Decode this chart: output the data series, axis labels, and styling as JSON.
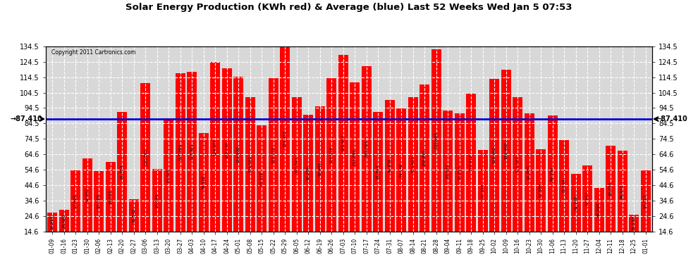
{
  "title": "Solar Energy Production (KWh red) & Average (blue) Last 52 Weeks Wed Jan 5 07:53",
  "copyright": "Copyright 2011 Cartronics.com",
  "average": 87.41,
  "average_label": "87.410",
  "bar_color": "#ff0000",
  "avg_line_color": "#0000dd",
  "background_color": "#ffffff",
  "plot_bg_color": "#ffffff",
  "grid_color": "#bbbbbb",
  "ylim": [
    14.6,
    134.5
  ],
  "yticks": [
    14.6,
    24.6,
    34.6,
    44.6,
    54.6,
    64.6,
    74.5,
    84.5,
    94.5,
    104.5,
    114.5,
    124.5,
    134.5
  ],
  "categories": [
    "01-09",
    "01-16",
    "01-23",
    "01-30",
    "02-06",
    "02-13",
    "02-20",
    "02-27",
    "03-06",
    "03-13",
    "03-20",
    "03-27",
    "04-03",
    "04-10",
    "04-17",
    "04-24",
    "05-01",
    "05-08",
    "05-15",
    "05-22",
    "05-29",
    "06-05",
    "06-12",
    "06-19",
    "06-26",
    "07-03",
    "07-10",
    "07-17",
    "07-24",
    "07-31",
    "08-07",
    "08-14",
    "08-21",
    "08-28",
    "09-04",
    "09-11",
    "09-18",
    "09-25",
    "10-02",
    "10-09",
    "10-16",
    "10-23",
    "10-30",
    "11-06",
    "11-13",
    "11-20",
    "11-27",
    "12-04",
    "12-11",
    "12-18",
    "12-25",
    "01-01"
  ],
  "values": [
    26.813,
    28.602,
    53.926,
    62.08,
    53.703,
    59.522,
    91.764,
    35.542,
    110.706,
    55.049,
    87.91,
    117.203,
    117.921,
    78.526,
    124.205,
    120.139,
    114.6,
    101.551,
    83.318,
    113.712,
    134.453,
    101.347,
    90.239,
    95.841,
    114.014,
    128.907,
    111.096,
    121.764,
    91.897,
    99.876,
    94.146,
    101.613,
    109.875,
    132.615,
    93.082,
    91.255,
    103.912,
    67.324,
    113.46,
    119.46,
    101.567,
    90.9,
    67.985,
    89.73,
    73.749,
    51.741,
    57.467,
    42.598,
    69.978,
    66.933,
    25.533,
    54.152
  ]
}
